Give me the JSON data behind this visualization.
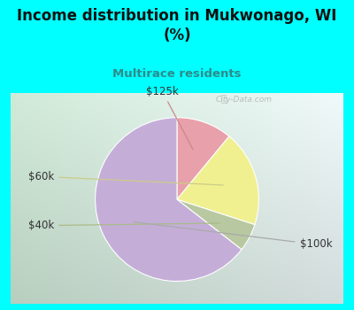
{
  "title": "Income distribution in Mukwonago, WI\n(%)",
  "subtitle": "Multirace residents",
  "title_color": "#111111",
  "subtitle_color": "#2e8b8b",
  "background_color": "#00ffff",
  "labels": [
    "$125k",
    "$60k",
    "$40k",
    "$100k"
  ],
  "values": [
    11.0,
    19.0,
    5.5,
    64.5
  ],
  "colors": [
    "#e8a0aa",
    "#f0f090",
    "#b8c8a0",
    "#c4aed8"
  ],
  "startangle": 90,
  "watermark": "City-Data.com"
}
